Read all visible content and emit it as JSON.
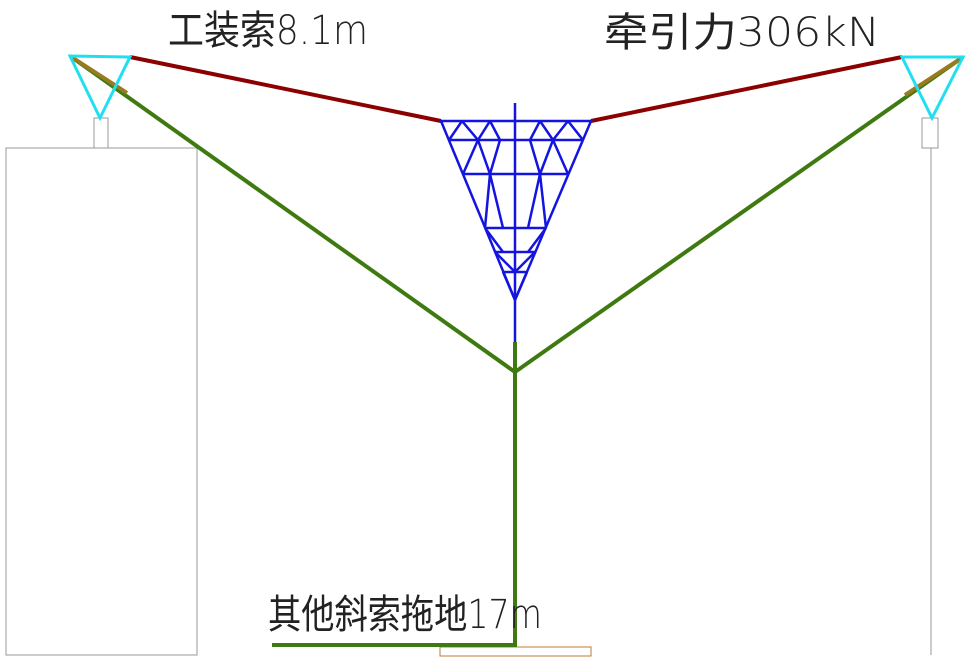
{
  "labels": {
    "top_left": "工装索8.1m",
    "top_right": "牵引力306kN",
    "bottom": "其他斜索拖地17m"
  }
}
